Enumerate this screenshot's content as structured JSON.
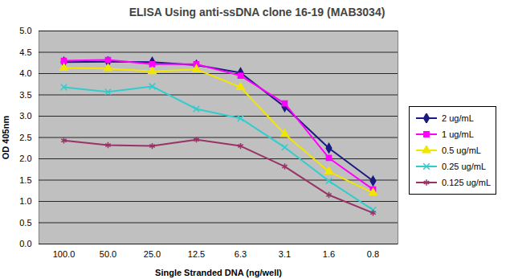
{
  "chart_data": {
    "type": "line",
    "title": "ELISA Using anti-ssDNA clone 16-19 (MAB3034)",
    "x_label": "Single Stranded DNA (ng/well)",
    "y_label": "OD 405nm",
    "categories": [
      "100.0",
      "50.0",
      "25.0",
      "12.5",
      "6.3",
      "3.1",
      "1.6",
      "0.8"
    ],
    "series": [
      {
        "name": "2 ug/mL",
        "color": "#1a1a80",
        "marker": "diamond",
        "values": [
          4.27,
          4.28,
          4.27,
          4.2,
          4.02,
          3.22,
          2.25,
          1.48
        ]
      },
      {
        "name": "1 ug/mL",
        "color": "#ff00ff",
        "marker": "square",
        "values": [
          4.3,
          4.32,
          4.22,
          4.22,
          3.95,
          3.3,
          2.02,
          1.28
        ]
      },
      {
        "name": "0.5 ug/mL",
        "color": "#f2e600",
        "marker": "triangle",
        "values": [
          4.13,
          4.12,
          4.05,
          4.1,
          3.68,
          2.58,
          1.7,
          1.2
        ]
      },
      {
        "name": "0.25 ug/mL",
        "color": "#33cccc",
        "marker": "times",
        "values": [
          3.68,
          3.57,
          3.7,
          3.17,
          2.95,
          2.27,
          1.48,
          0.8
        ]
      },
      {
        "name": "0.125 ug/mL",
        "color": "#993366",
        "marker": "asterisk",
        "values": [
          2.43,
          2.32,
          2.3,
          2.45,
          2.3,
          1.82,
          1.15,
          0.73
        ]
      }
    ],
    "ylim": [
      0,
      5
    ],
    "yticks": [
      0,
      0.5,
      1,
      1.5,
      2,
      2.5,
      3,
      3.5,
      4,
      4.5,
      5
    ],
    "grid": true,
    "legend": "right"
  }
}
